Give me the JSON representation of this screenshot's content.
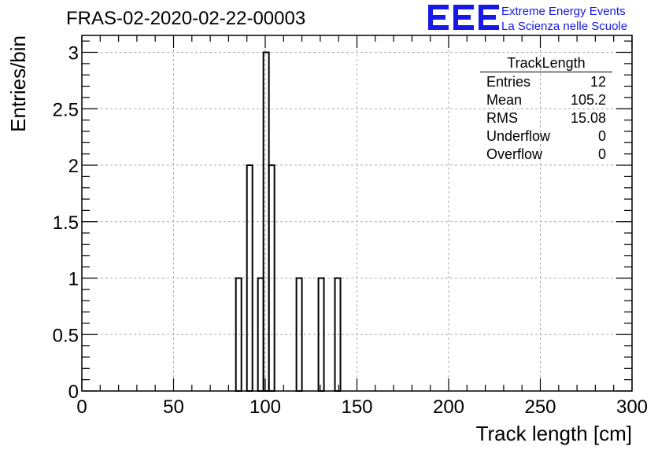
{
  "header": {
    "title": "FRAS-02-2020-02-22-00003",
    "logo_letters": "EEE",
    "logo_line1": "Extreme Energy Events",
    "logo_line2": "La Scienza nelle Scuole"
  },
  "colors": {
    "brand": "#1717e8",
    "histogram": "#000000",
    "grid": "#aaaaaa"
  },
  "stats": {
    "title": "TrackLength",
    "rows": [
      {
        "label": "Entries",
        "value": "12"
      },
      {
        "label": "Mean",
        "value": "105.2"
      },
      {
        "label": "RMS",
        "value": "15.08"
      },
      {
        "label": "Underflow",
        "value": "0"
      },
      {
        "label": "Overflow",
        "value": "0"
      }
    ]
  },
  "chart_data": {
    "type": "bar",
    "title": "FRAS-02-2020-02-22-00003",
    "xlabel": "Track length [cm]",
    "ylabel": "Entries/bin",
    "xlim": [
      0,
      300
    ],
    "ylim": [
      0,
      3.15
    ],
    "grid": true,
    "bin_width": 3,
    "xticks": [
      0,
      50,
      100,
      150,
      200,
      250,
      300
    ],
    "xtick_labels": [
      "0",
      "50",
      "100",
      "150",
      "200",
      "250",
      "300"
    ],
    "yticks": [
      0,
      0.5,
      1,
      1.5,
      2,
      2.5,
      3
    ],
    "ytick_labels": [
      "0",
      "0.5",
      "1",
      "1.5",
      "2",
      "2.5",
      "3"
    ],
    "bins": [
      {
        "x": 84,
        "value": 1
      },
      {
        "x": 90,
        "value": 2
      },
      {
        "x": 96,
        "value": 1
      },
      {
        "x": 99,
        "value": 3
      },
      {
        "x": 102,
        "value": 2
      },
      {
        "x": 117,
        "value": 1
      },
      {
        "x": 129,
        "value": 1
      },
      {
        "x": 138,
        "value": 1
      }
    ]
  }
}
